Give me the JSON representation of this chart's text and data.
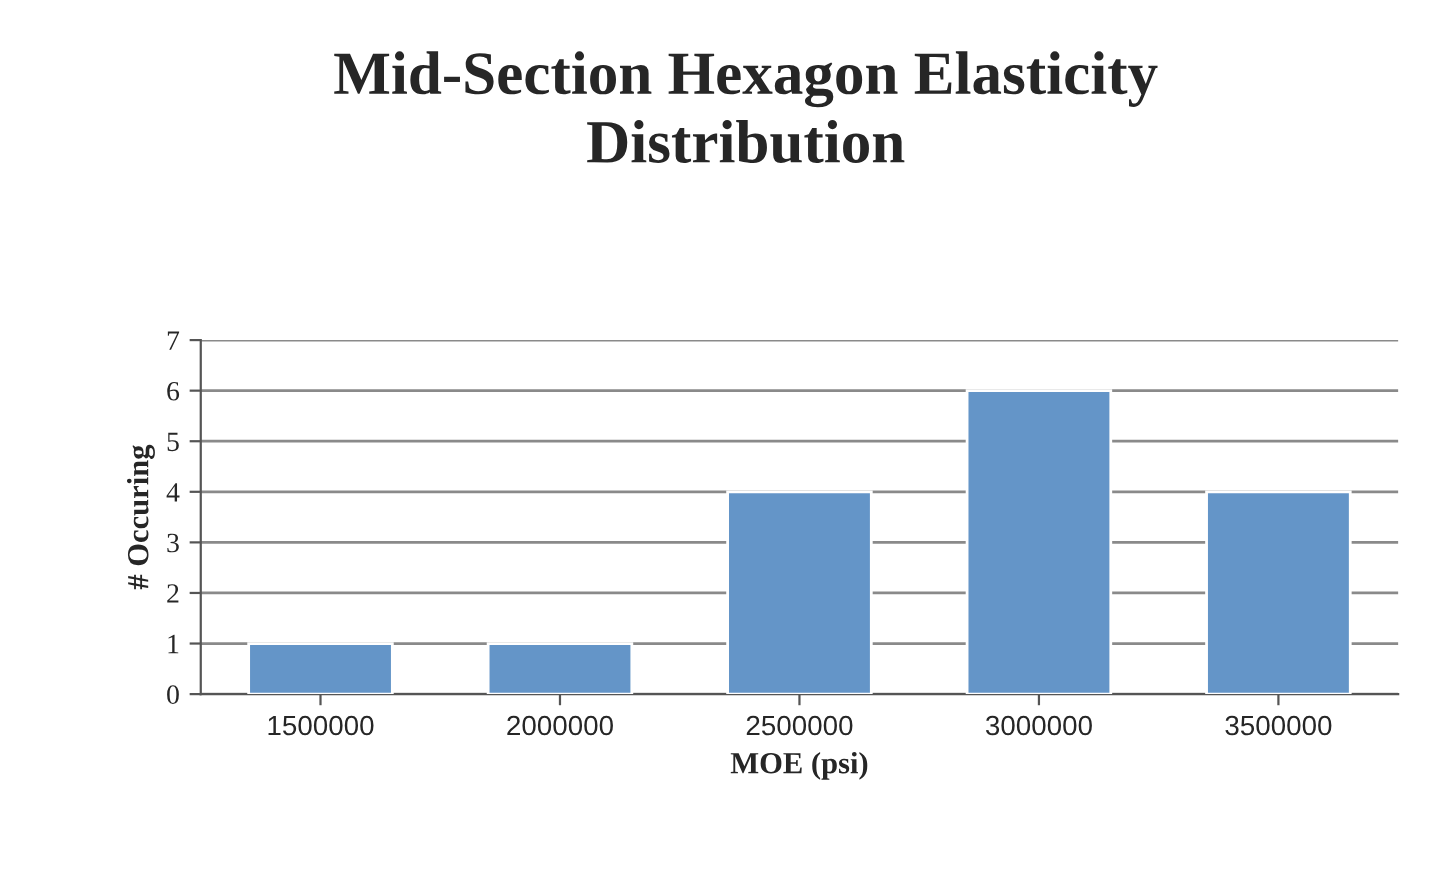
{
  "chart_data": {
    "type": "bar",
    "title": "Mid-Section Hexagon Elasticity\nDistribution",
    "xlabel": "MOE (psi)",
    "ylabel": "# Occuring",
    "categories": [
      "1500000",
      "2000000",
      "2500000",
      "3000000",
      "3500000"
    ],
    "values": [
      1,
      1,
      4,
      6,
      4
    ],
    "color": "#6495c8",
    "ylim": [
      0,
      7
    ],
    "yticks": [
      0,
      1,
      2,
      3,
      4,
      5,
      6,
      7
    ],
    "grid": "y",
    "legend": false
  }
}
